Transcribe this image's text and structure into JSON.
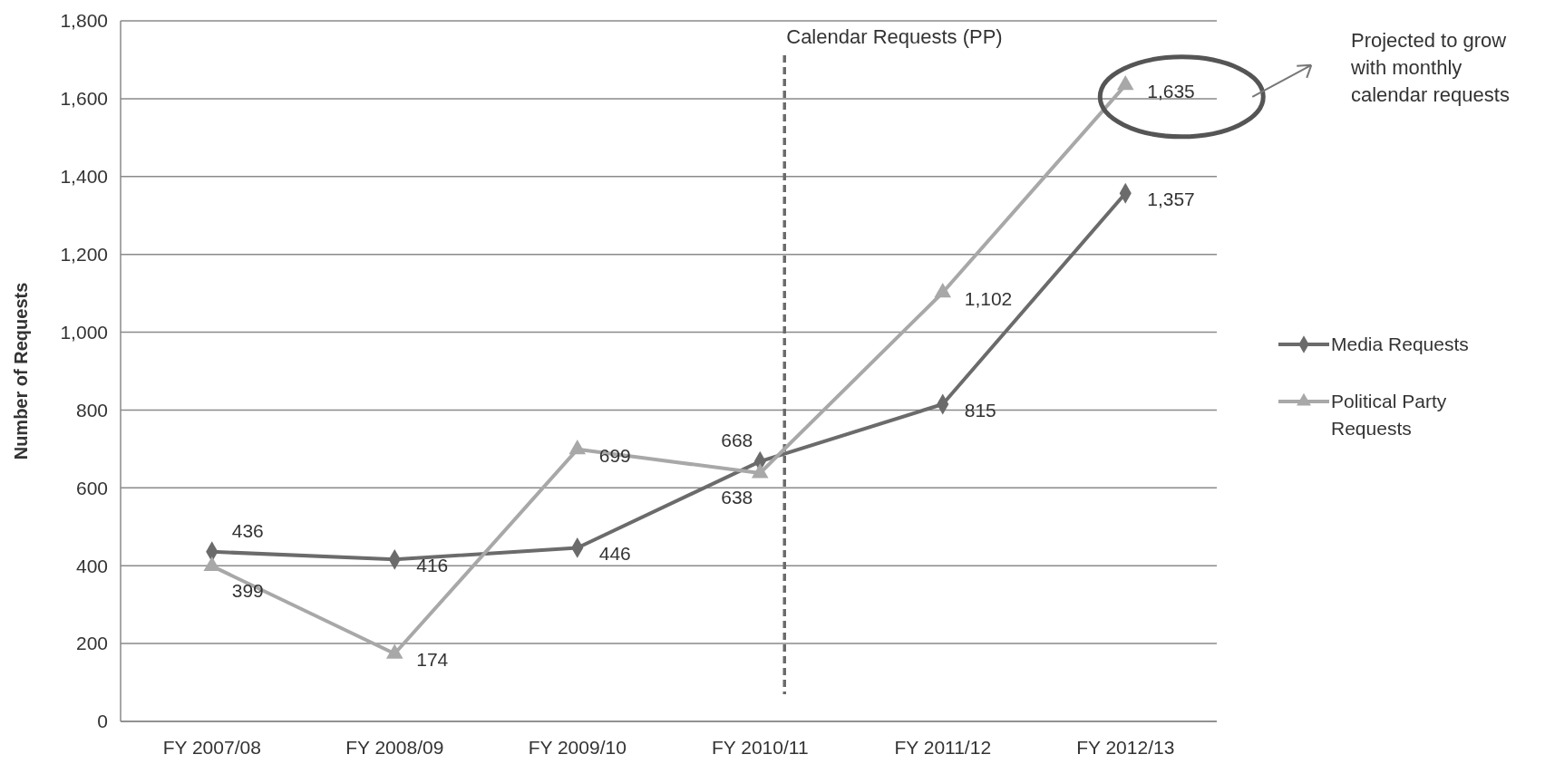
{
  "chart_data": {
    "type": "line",
    "ylabel": "Number of Requests",
    "categories": [
      "FY 2007/08",
      "FY 2008/09",
      "FY 2009/10",
      "FY 2010/11",
      "FY 2011/12",
      "FY 2012/13"
    ],
    "series": [
      {
        "name": "Media Requests",
        "color": "#6b6b6b",
        "marker": "diamond",
        "values": [
          436,
          416,
          446,
          668,
          815,
          1357
        ],
        "value_labels": [
          "436",
          "416",
          "446",
          "668",
          "815",
          "1,357"
        ]
      },
      {
        "name": "Political Party Requests",
        "color": "#a8a8a8",
        "marker": "triangle",
        "values": [
          399,
          174,
          699,
          638,
          1102,
          1635
        ],
        "value_labels": [
          "399",
          "174",
          "699",
          "638",
          "1,102",
          "1,635"
        ]
      }
    ],
    "ylim": [
      0,
      1800
    ],
    "yticks": [
      {
        "value": 0,
        "label": "0"
      },
      {
        "value": 200,
        "label": "200"
      },
      {
        "value": 400,
        "label": "400"
      },
      {
        "value": 600,
        "label": "600"
      },
      {
        "value": 800,
        "label": "800"
      },
      {
        "value": 1000,
        "label": "1,000"
      },
      {
        "value": 1200,
        "label": "1,200"
      },
      {
        "value": 1400,
        "label": "1,400"
      },
      {
        "value": 1600,
        "label": "1,600"
      },
      {
        "value": 1800,
        "label": "1,800"
      }
    ],
    "grid": "y",
    "legend": "right",
    "line_style": "solid",
    "ref_lines": [
      {
        "axis": "x",
        "value": "FY 2010/11",
        "label": "Calendar Requests (PP)",
        "color": "#6b6b6b",
        "line_style": "dashed"
      }
    ],
    "annotations": [
      "Projected to grow with monthly calendar requests"
    ]
  }
}
